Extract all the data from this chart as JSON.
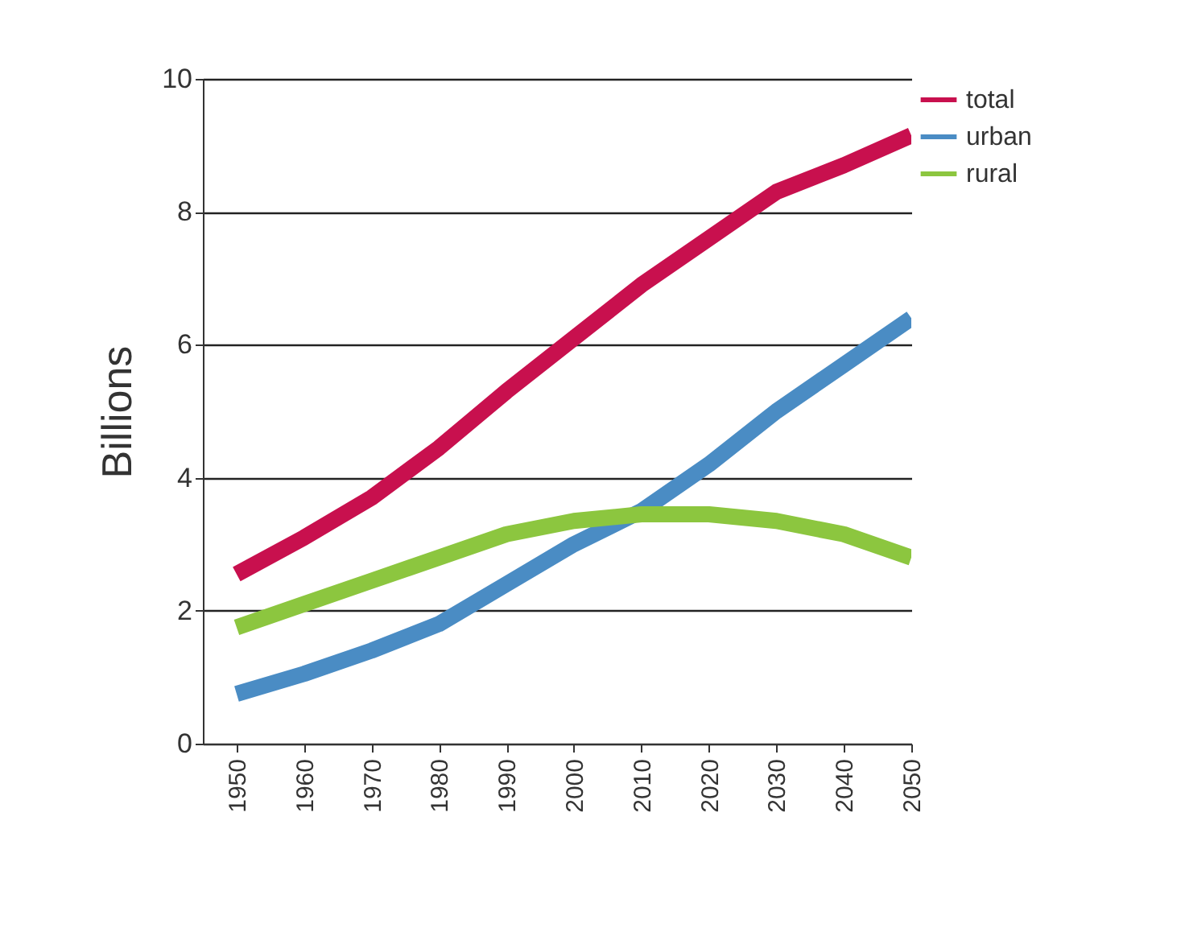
{
  "chart_data": {
    "type": "line",
    "ylabel": "Billions",
    "x": [
      1950,
      1960,
      1970,
      1980,
      1990,
      2000,
      2010,
      2020,
      2030,
      2040,
      2050
    ],
    "xlim": [
      1945,
      2050
    ],
    "xticks": [
      1950,
      1960,
      1970,
      1980,
      1990,
      2000,
      2010,
      2020,
      2030,
      2040,
      2050
    ],
    "ylim": [
      0,
      10
    ],
    "yticks": [
      0,
      2,
      4,
      6,
      8,
      10
    ],
    "grid": "y",
    "legend": "top right",
    "series": [
      {
        "name": "total",
        "color": "#c8104e",
        "values": [
          2.55,
          3.1,
          3.7,
          4.45,
          5.3,
          6.1,
          6.9,
          7.6,
          8.3,
          8.7,
          9.15
        ]
      },
      {
        "name": "urban",
        "color": "#4a8cc4",
        "values": [
          0.75,
          1.05,
          1.4,
          1.8,
          2.4,
          3.0,
          3.5,
          4.2,
          5.0,
          5.7,
          6.4
        ]
      },
      {
        "name": "rural",
        "color": "#8cc63f",
        "values": [
          1.75,
          2.1,
          2.45,
          2.8,
          3.15,
          3.35,
          3.45,
          3.45,
          3.35,
          3.15,
          2.8
        ]
      }
    ]
  }
}
